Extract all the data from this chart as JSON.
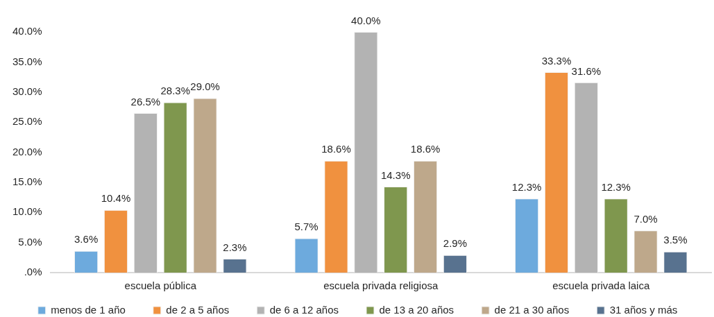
{
  "chart_data": {
    "type": "bar",
    "categories": [
      "escuela pública",
      "escuela privada religiosa",
      "escuela privada laica"
    ],
    "series": [
      {
        "name": "menos de 1 año",
        "color": "#6daadd",
        "values": [
          3.6,
          5.7,
          12.3
        ],
        "value_labels": [
          "3.6%",
          "5.7%",
          "12.3%"
        ]
      },
      {
        "name": "de 2 a 5 años",
        "color": "#f0913f",
        "values": [
          10.4,
          18.6,
          33.3
        ],
        "value_labels": [
          "10.4%",
          "18.6%",
          "33.3%"
        ]
      },
      {
        "name": "de 6 a 12 años",
        "color": "#b3b3b3",
        "values": [
          26.5,
          40.0,
          31.6
        ],
        "value_labels": [
          "26.5%",
          "40.0%",
          "31.6%"
        ]
      },
      {
        "name": "de 13 a 20 años",
        "color": "#7f974e",
        "values": [
          28.3,
          14.3,
          12.3
        ],
        "value_labels": [
          "28.3%",
          "14.3%",
          "12.3%"
        ]
      },
      {
        "name": "de 21 a 30 años",
        "color": "#bea88b",
        "values": [
          29.0,
          18.6,
          7.0
        ],
        "value_labels": [
          "29.0%",
          "18.6%",
          "7.0%"
        ]
      },
      {
        "name": "31 años y más",
        "color": "#58728f",
        "values": [
          2.3,
          2.9,
          3.5
        ],
        "value_labels": [
          "2.3%",
          "2.9%",
          "3.5%"
        ]
      }
    ],
    "ylim": [
      0,
      40
    ],
    "yticks": [
      {
        "value": 0,
        "label": ".0%"
      },
      {
        "value": 5,
        "label": "5.0%"
      },
      {
        "value": 10,
        "label": "10.0%"
      },
      {
        "value": 15,
        "label": "15.0%"
      },
      {
        "value": 20,
        "label": "20.0%"
      },
      {
        "value": 25,
        "label": "25.0%"
      },
      {
        "value": 30,
        "label": "30.0%"
      },
      {
        "value": 35,
        "label": "35.0%"
      },
      {
        "value": 40,
        "label": "40.0%"
      }
    ],
    "legend": "bottom"
  }
}
